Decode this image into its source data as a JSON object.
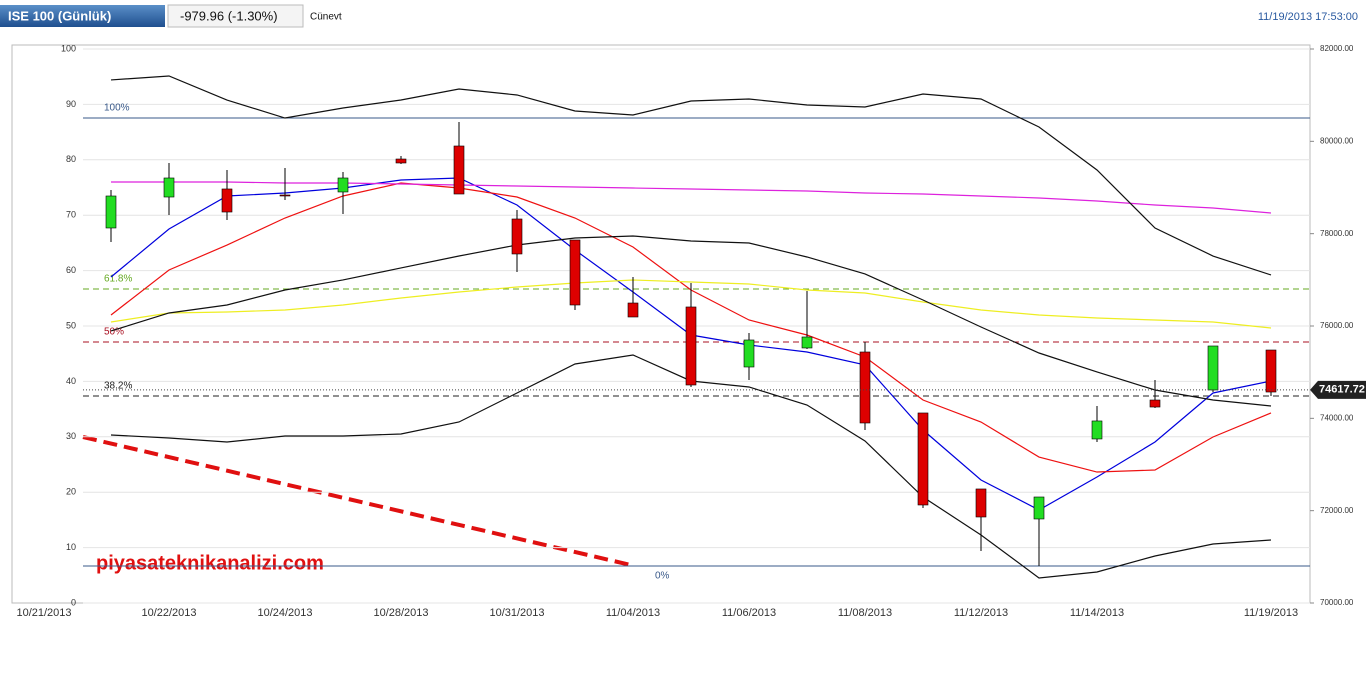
{
  "header": {
    "title": "ISE 100 (Günlük)",
    "change": "-979.96 (-1.30%)",
    "user": "Cünevt",
    "timestamp": "11/19/2013 17:53:00"
  },
  "watermark": "piyasateknikanalizi.com",
  "chart_data": {
    "type": "candlestick",
    "categories": [
      "10/21/2013",
      "10/22/2013",
      null,
      "10/24/2013",
      null,
      "10/28/2013",
      null,
      "10/31/2013",
      null,
      "11/04/2013",
      null,
      "11/06/2013",
      null,
      "11/08/2013",
      null,
      "11/12/2013",
      null,
      "11/14/2013",
      null,
      null,
      "11/19/2013"
    ],
    "open": [
      78123,
      78794,
      78968,
      78838,
      78903,
      79617,
      79899,
      78318,
      77863,
      76498,
      76412,
      75112,
      75524,
      75437,
      74116,
      72470,
      71820,
      73553,
      74397,
      74614,
      75480
    ],
    "close": [
      78816,
      79206,
      78469,
      78816,
      79206,
      79531,
      78859,
      77560,
      76455,
      76195,
      74722,
      75697,
      75762,
      73899,
      72123,
      71863,
      72296,
      73943,
      74245,
      75567,
      74570
    ],
    "high": [
      78946,
      79531,
      79379,
      79423,
      79336,
      79683,
      80419,
      78513,
      77863,
      77061,
      76932,
      75849,
      76758,
      75654,
      74116,
      72470,
      72296,
      74267,
      74830,
      75567,
      75480
    ],
    "low": [
      77820,
      78404,
      78296,
      78729,
      78426,
      79509,
      78859,
      77170,
      76347,
      76195,
      74679,
      74830,
      75502,
      73747,
      72058,
      71127,
      70802,
      73488,
      74224,
      74570,
      74484
    ],
    "up_color": "#22dd22",
    "down_color": "#dd0000",
    "lines": [
      {
        "color": "#0000dd",
        "values": [
          77061,
          78101,
          78816,
          78881,
          78989,
          79163,
          79206,
          78621,
          77646,
          76737,
          75805,
          75589,
          75437,
          75156,
          73747,
          72664,
          72015,
          72729,
          73487,
          74549,
          74809
        ]
      },
      {
        "color": "#ee1111",
        "values": [
          76238,
          77213,
          77754,
          78339,
          78816,
          79097,
          78989,
          78794,
          78339,
          77711,
          76780,
          76130,
          75805,
          75329,
          74397,
          73920,
          73162,
          72837,
          72881,
          73596,
          74116
        ]
      },
      {
        "color": "#dd22dd",
        "values": [
          79119,
          79119,
          79119,
          79098,
          79098,
          79076,
          79054,
          79032,
          79011,
          78989,
          78968,
          78946,
          78924,
          78881,
          78859,
          78816,
          78773,
          78708,
          78621,
          78556,
          78448
        ]
      },
      {
        "color": "#eeee22",
        "values": [
          76087,
          76282,
          76303,
          76347,
          76455,
          76607,
          76737,
          76845,
          76932,
          76996,
          76953,
          76910,
          76780,
          76715,
          76520,
          76347,
          76238,
          76173,
          76130,
          76087,
          75957
        ]
      },
      {
        "color": "#111111",
        "values": [
          81330,
          81415,
          80895,
          80505,
          80722,
          80895,
          81134,
          81004,
          80657,
          80570,
          80874,
          80917,
          80787,
          80744,
          81025,
          80917,
          80310,
          79379,
          78123,
          77516,
          77105
        ]
      },
      {
        "color": "#111111",
        "values": [
          75892,
          76282,
          76455,
          76780,
          76997,
          77257,
          77516,
          77755,
          77906,
          77950,
          77841,
          77798,
          77495,
          77127,
          76563,
          75978,
          75415,
          75004,
          74614,
          74397,
          74267
        ]
      },
      {
        "color": "#111111",
        "values": [
          73639,
          73574,
          73487,
          73617,
          73617,
          73661,
          73921,
          74549,
          75177,
          75372,
          74809,
          74679,
          74289,
          73509,
          72296,
          71473,
          70542,
          70672,
          71018,
          71278,
          71365
        ]
      }
    ],
    "fib_levels": [
      {
        "label": "100%",
        "value": 80505,
        "color": "#3a5a8a"
      },
      {
        "label": "61.8%",
        "value": 76802,
        "color": "#66aa22"
      },
      {
        "label": "50%",
        "value": 75653,
        "color": "#aa1122"
      },
      {
        "label": "38.2%",
        "value": 74484,
        "color": "#222222"
      },
      {
        "label": "0%",
        "value": 70802,
        "color": "#3a5a8a"
      }
    ],
    "last_price": 74617.72,
    "ylim": [
      0,
      100
    ],
    "yticks": [
      0,
      10,
      20,
      30,
      40,
      50,
      60,
      70,
      80,
      90,
      100
    ],
    "y2lim": [
      70000,
      82000
    ],
    "y2ticks": [
      {
        "value": 70000,
        "label": "70000.00"
      },
      {
        "value": 72000,
        "label": "72000.00"
      },
      {
        "value": 74000,
        "label": "74000.00"
      },
      {
        "value": 76000,
        "label": "76000.00"
      },
      {
        "value": 78000,
        "label": "78000.00"
      },
      {
        "value": 80000,
        "label": "80000.00"
      },
      {
        "value": 82000,
        "label": "82000.00"
      }
    ],
    "grid": true
  }
}
